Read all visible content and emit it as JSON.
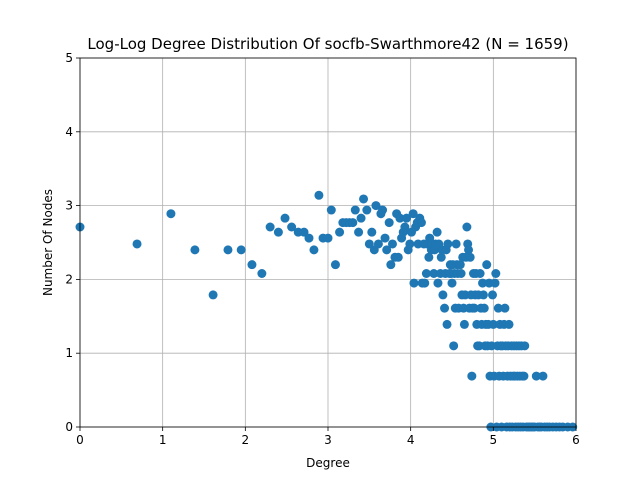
{
  "chart_data": {
    "type": "scatter",
    "title": "Log-Log Degree Distribution Of socfb-Swarthmore42 (N = 1659)",
    "xlabel": "Degree",
    "ylabel": "Number Of Nodes",
    "xlim": [
      0,
      6
    ],
    "ylim": [
      0,
      5
    ],
    "xticks": [
      "0",
      "1",
      "2",
      "3",
      "4",
      "5",
      "6"
    ],
    "yticks": [
      "0",
      "1",
      "2",
      "3",
      "4",
      "5"
    ],
    "grid": true,
    "marker_color": "#1f77b4",
    "points": [
      [
        0.0,
        2.71
      ],
      [
        0.69,
        2.48
      ],
      [
        1.1,
        2.89
      ],
      [
        1.39,
        2.4
      ],
      [
        1.61,
        1.79
      ],
      [
        1.79,
        2.4
      ],
      [
        1.95,
        2.4
      ],
      [
        2.08,
        2.2
      ],
      [
        2.2,
        2.08
      ],
      [
        2.3,
        2.71
      ],
      [
        2.4,
        2.64
      ],
      [
        2.48,
        2.83
      ],
      [
        2.56,
        2.71
      ],
      [
        2.64,
        2.64
      ],
      [
        2.71,
        2.64
      ],
      [
        2.77,
        2.56
      ],
      [
        2.83,
        2.4
      ],
      [
        2.89,
        3.14
      ],
      [
        2.94,
        2.56
      ],
      [
        3.0,
        2.56
      ],
      [
        3.04,
        2.94
      ],
      [
        3.09,
        2.2
      ],
      [
        3.14,
        2.64
      ],
      [
        3.18,
        2.77
      ],
      [
        3.22,
        2.77
      ],
      [
        3.26,
        2.77
      ],
      [
        3.3,
        2.77
      ],
      [
        3.33,
        2.94
      ],
      [
        3.37,
        2.64
      ],
      [
        3.4,
        2.83
      ],
      [
        3.43,
        3.09
      ],
      [
        3.47,
        2.94
      ],
      [
        3.5,
        2.48
      ],
      [
        3.53,
        2.64
      ],
      [
        3.56,
        2.4
      ],
      [
        3.58,
        3.0
      ],
      [
        3.61,
        2.48
      ],
      [
        3.64,
        2.89
      ],
      [
        3.66,
        2.94
      ],
      [
        3.69,
        2.56
      ],
      [
        3.71,
        2.4
      ],
      [
        3.74,
        2.77
      ],
      [
        3.76,
        2.2
      ],
      [
        3.78,
        2.48
      ],
      [
        3.81,
        2.3
      ],
      [
        3.83,
        2.89
      ],
      [
        3.85,
        2.3
      ],
      [
        3.87,
        2.83
      ],
      [
        3.89,
        2.56
      ],
      [
        3.91,
        2.64
      ],
      [
        3.93,
        2.71
      ],
      [
        3.95,
        2.83
      ],
      [
        3.97,
        2.4
      ],
      [
        3.99,
        2.48
      ],
      [
        4.01,
        2.64
      ],
      [
        4.03,
        2.89
      ],
      [
        4.04,
        1.95
      ],
      [
        4.06,
        2.71
      ],
      [
        4.08,
        2.77
      ],
      [
        4.09,
        2.48
      ],
      [
        4.11,
        2.83
      ],
      [
        4.13,
        2.77
      ],
      [
        4.14,
        1.95
      ],
      [
        4.16,
        2.48
      ],
      [
        4.17,
        1.95
      ],
      [
        4.19,
        2.08
      ],
      [
        4.2,
        2.48
      ],
      [
        4.22,
        2.3
      ],
      [
        4.23,
        2.56
      ],
      [
        4.25,
        2.4
      ],
      [
        4.26,
        2.48
      ],
      [
        4.28,
        2.08
      ],
      [
        4.29,
        2.4
      ],
      [
        4.3,
        2.48
      ],
      [
        4.32,
        2.64
      ],
      [
        4.33,
        1.95
      ],
      [
        4.34,
        2.48
      ],
      [
        4.36,
        2.08
      ],
      [
        4.37,
        2.3
      ],
      [
        4.38,
        2.4
      ],
      [
        4.39,
        1.79
      ],
      [
        4.41,
        1.61
      ],
      [
        4.42,
        2.08
      ],
      [
        4.43,
        2.4
      ],
      [
        4.44,
        1.39
      ],
      [
        4.45,
        2.48
      ],
      [
        4.47,
        2.08
      ],
      [
        4.48,
        2.2
      ],
      [
        4.49,
        2.08
      ],
      [
        4.5,
        1.95
      ],
      [
        4.51,
        2.2
      ],
      [
        4.52,
        1.1
      ],
      [
        4.53,
        2.08
      ],
      [
        4.54,
        1.61
      ],
      [
        4.55,
        2.48
      ],
      [
        4.56,
        2.2
      ],
      [
        4.57,
        2.08
      ],
      [
        4.58,
        1.61
      ],
      [
        4.6,
        2.2
      ],
      [
        4.61,
        2.08
      ],
      [
        4.62,
        1.79
      ],
      [
        4.63,
        2.3
      ],
      [
        4.64,
        1.61
      ],
      [
        4.65,
        1.39
      ],
      [
        4.66,
        1.79
      ],
      [
        4.67,
        2.3
      ],
      [
        4.68,
        2.71
      ],
      [
        4.69,
        2.48
      ],
      [
        4.7,
        2.4
      ],
      [
        4.71,
        1.61
      ],
      [
        4.72,
        2.3
      ],
      [
        4.73,
        1.79
      ],
      [
        4.74,
        0.69
      ],
      [
        4.75,
        1.61
      ],
      [
        4.76,
        2.08
      ],
      [
        4.77,
        1.61
      ],
      [
        4.78,
        1.79
      ],
      [
        4.79,
        2.08
      ],
      [
        4.8,
        1.39
      ],
      [
        4.81,
        1.1
      ],
      [
        4.82,
        1.79
      ],
      [
        4.83,
        1.1
      ],
      [
        4.84,
        2.08
      ],
      [
        4.85,
        1.61
      ],
      [
        4.86,
        1.39
      ],
      [
        4.87,
        1.95
      ],
      [
        4.88,
        1.79
      ],
      [
        4.89,
        1.61
      ],
      [
        4.9,
        1.1
      ],
      [
        4.91,
        1.39
      ],
      [
        4.92,
        2.2
      ],
      [
        4.93,
        1.1
      ],
      [
        4.94,
        1.39
      ],
      [
        4.95,
        1.95
      ],
      [
        4.96,
        0.69
      ],
      [
        4.97,
        0.0
      ],
      [
        4.98,
        1.1
      ],
      [
        4.99,
        1.79
      ],
      [
        5.0,
        1.39
      ],
      [
        5.01,
        0.69
      ],
      [
        5.02,
        1.95
      ],
      [
        5.03,
        2.08
      ],
      [
        5.04,
        0.0
      ],
      [
        5.05,
        1.1
      ],
      [
        5.06,
        1.61
      ],
      [
        5.07,
        0.69
      ],
      [
        5.08,
        1.39
      ],
      [
        5.09,
        1.1
      ],
      [
        5.1,
        0.0
      ],
      [
        5.11,
        1.1
      ],
      [
        5.12,
        0.69
      ],
      [
        5.13,
        1.39
      ],
      [
        5.14,
        1.61
      ],
      [
        5.15,
        1.1
      ],
      [
        5.16,
        0.0
      ],
      [
        5.17,
        0.69
      ],
      [
        5.18,
        1.1
      ],
      [
        5.19,
        1.39
      ],
      [
        5.2,
        0.0
      ],
      [
        5.21,
        0.69
      ],
      [
        5.22,
        1.1
      ],
      [
        5.23,
        0.0
      ],
      [
        5.24,
        0.69
      ],
      [
        5.25,
        1.1
      ],
      [
        5.26,
        0.69
      ],
      [
        5.27,
        0.0
      ],
      [
        5.28,
        1.1
      ],
      [
        5.29,
        0.69
      ],
      [
        5.3,
        0.0
      ],
      [
        5.31,
        1.1
      ],
      [
        5.32,
        0.69
      ],
      [
        5.33,
        0.0
      ],
      [
        5.34,
        1.1
      ],
      [
        5.35,
        0.69
      ],
      [
        5.36,
        0.0
      ],
      [
        5.37,
        0.69
      ],
      [
        5.38,
        1.1
      ],
      [
        5.4,
        0.0
      ],
      [
        5.42,
        0.0
      ],
      [
        5.44,
        0.0
      ],
      [
        5.46,
        0.0
      ],
      [
        5.48,
        0.0
      ],
      [
        5.5,
        0.0
      ],
      [
        5.52,
        0.69
      ],
      [
        5.54,
        0.0
      ],
      [
        5.56,
        0.0
      ],
      [
        5.58,
        0.0
      ],
      [
        5.6,
        0.69
      ],
      [
        5.62,
        0.0
      ],
      [
        5.65,
        0.0
      ],
      [
        5.68,
        0.0
      ],
      [
        5.72,
        0.0
      ],
      [
        5.76,
        0.0
      ],
      [
        5.8,
        0.0
      ],
      [
        5.84,
        0.0
      ],
      [
        5.9,
        0.0
      ],
      [
        5.96,
        0.0
      ]
    ]
  }
}
